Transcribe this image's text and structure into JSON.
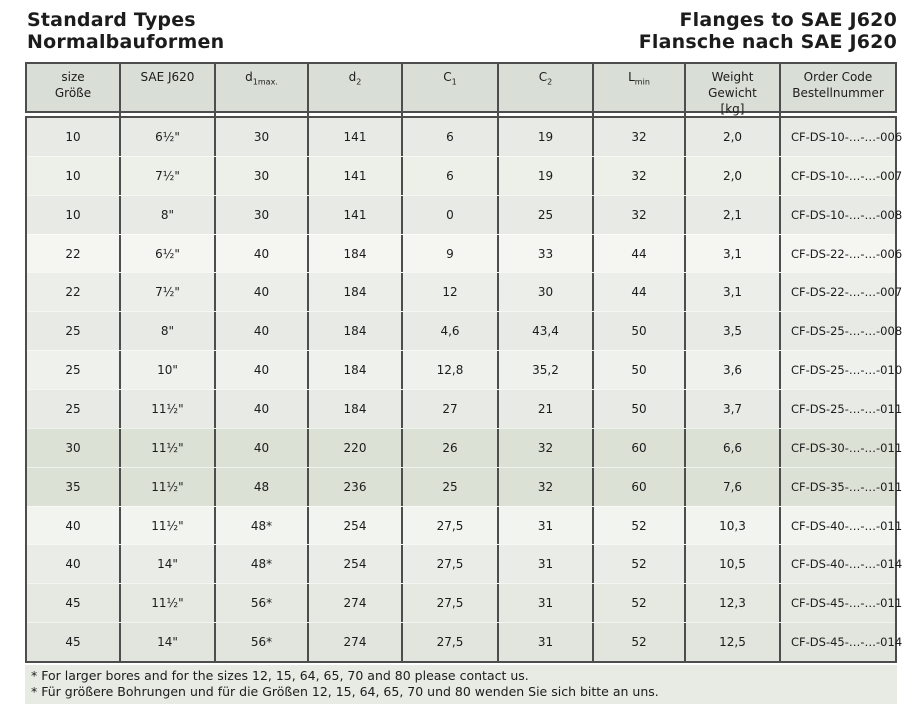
{
  "titles": {
    "left": [
      "Standard Types",
      "Normalbauformen"
    ],
    "right": [
      "Flanges to SAE J620",
      "Flansche nach SAE J620"
    ]
  },
  "table": {
    "columns": [
      {
        "line1": "size",
        "line2": "Größe"
      },
      {
        "line1": "SAE J620"
      },
      {
        "base": "d",
        "sub": "1max."
      },
      {
        "base": "d",
        "sub": "2"
      },
      {
        "base": "C",
        "sub": "1"
      },
      {
        "base": "C",
        "sub": "2"
      },
      {
        "base": "L",
        "sub": "min"
      },
      {
        "line1": "Weight",
        "line2": "Gewicht",
        "line3": "[kg]"
      },
      {
        "line1": "Order Code",
        "line2": "Bestellnummer"
      }
    ],
    "rows": [
      {
        "bg": "#e8ebe5",
        "cells": [
          "10",
          "6½\"",
          "30",
          "141",
          "6",
          "19",
          "32",
          "2,0",
          "CF-DS-10-…-…-006"
        ]
      },
      {
        "bg": "#edefe9",
        "cells": [
          "10",
          "7½\"",
          "30",
          "141",
          "6",
          "19",
          "32",
          "2,0",
          "CF-DS-10-…-…-007"
        ]
      },
      {
        "bg": "#e8ebe5",
        "cells": [
          "10",
          "8\"",
          "30",
          "141",
          "0",
          "25",
          "32",
          "2,1",
          "CF-DS-10-…-…-008"
        ]
      },
      {
        "bg": "#f5f6f2",
        "cells": [
          "22",
          "6½\"",
          "40",
          "184",
          "9",
          "33",
          "44",
          "3,1",
          "CF-DS-22-…-…-006"
        ]
      },
      {
        "bg": "#ecefe9",
        "cells": [
          "22",
          "7½\"",
          "40",
          "184",
          "12",
          "30",
          "44",
          "3,1",
          "CF-DS-22-…-…-007"
        ]
      },
      {
        "bg": "#e8ebe5",
        "cells": [
          "25",
          "8\"",
          "40",
          "184",
          "4,6",
          "43,4",
          "50",
          "3,5",
          "CF-DS-25-…-…-008"
        ]
      },
      {
        "bg": "#eff1ec",
        "cells": [
          "25",
          "10\"",
          "40",
          "184",
          "12,8",
          "35,2",
          "50",
          "3,6",
          "CF-DS-25-…-…-010"
        ]
      },
      {
        "bg": "#e8ebe5",
        "cells": [
          "25",
          "11½\"",
          "40",
          "184",
          "27",
          "21",
          "50",
          "3,7",
          "CF-DS-25-…-…-011"
        ]
      },
      {
        "bg": "#dce1d6",
        "cells": [
          "30",
          "11½\"",
          "40",
          "220",
          "26",
          "32",
          "60",
          "6,6",
          "CF-DS-30-…-…-011"
        ]
      },
      {
        "bg": "#dce1d6",
        "cells": [
          "35",
          "11½\"",
          "48",
          "236",
          "25",
          "32",
          "60",
          "7,6",
          "CF-DS-35-…-…-011"
        ]
      },
      {
        "bg": "#f2f4ef",
        "cells": [
          "40",
          "11½\"",
          "48*",
          "254",
          "27,5",
          "31",
          "52",
          "10,3",
          "CF-DS-40-…-…-011"
        ]
      },
      {
        "bg": "#eaede7",
        "cells": [
          "40",
          "14\"",
          "48*",
          "254",
          "27,5",
          "31",
          "52",
          "10,5",
          "CF-DS-40-…-…-014"
        ]
      },
      {
        "bg": "#e5e9e2",
        "cells": [
          "45",
          "11½\"",
          "56*",
          "274",
          "27,5",
          "31",
          "52",
          "12,3",
          "CF-DS-45-…-…-011"
        ]
      },
      {
        "bg": "#e1e5de",
        "cells": [
          "45",
          "14\"",
          "56*",
          "274",
          "27,5",
          "31",
          "52",
          "12,5",
          "CF-DS-45-…-…-014"
        ]
      }
    ]
  },
  "footnotes": [
    "* For larger bores and for the sizes 12, 15, 64, 65, 70 and 80 please contact us.",
    "* Für größere Bohrungen und für die Größen 12, 15, 64, 65, 70 und 80 wenden Sie sich bitte an uns."
  ],
  "colors": {
    "header_bg": "#d9ded6",
    "border": "#4d4d4d",
    "footnote_bg": "#e7ebe4",
    "title_color": "#1c1c1c"
  }
}
